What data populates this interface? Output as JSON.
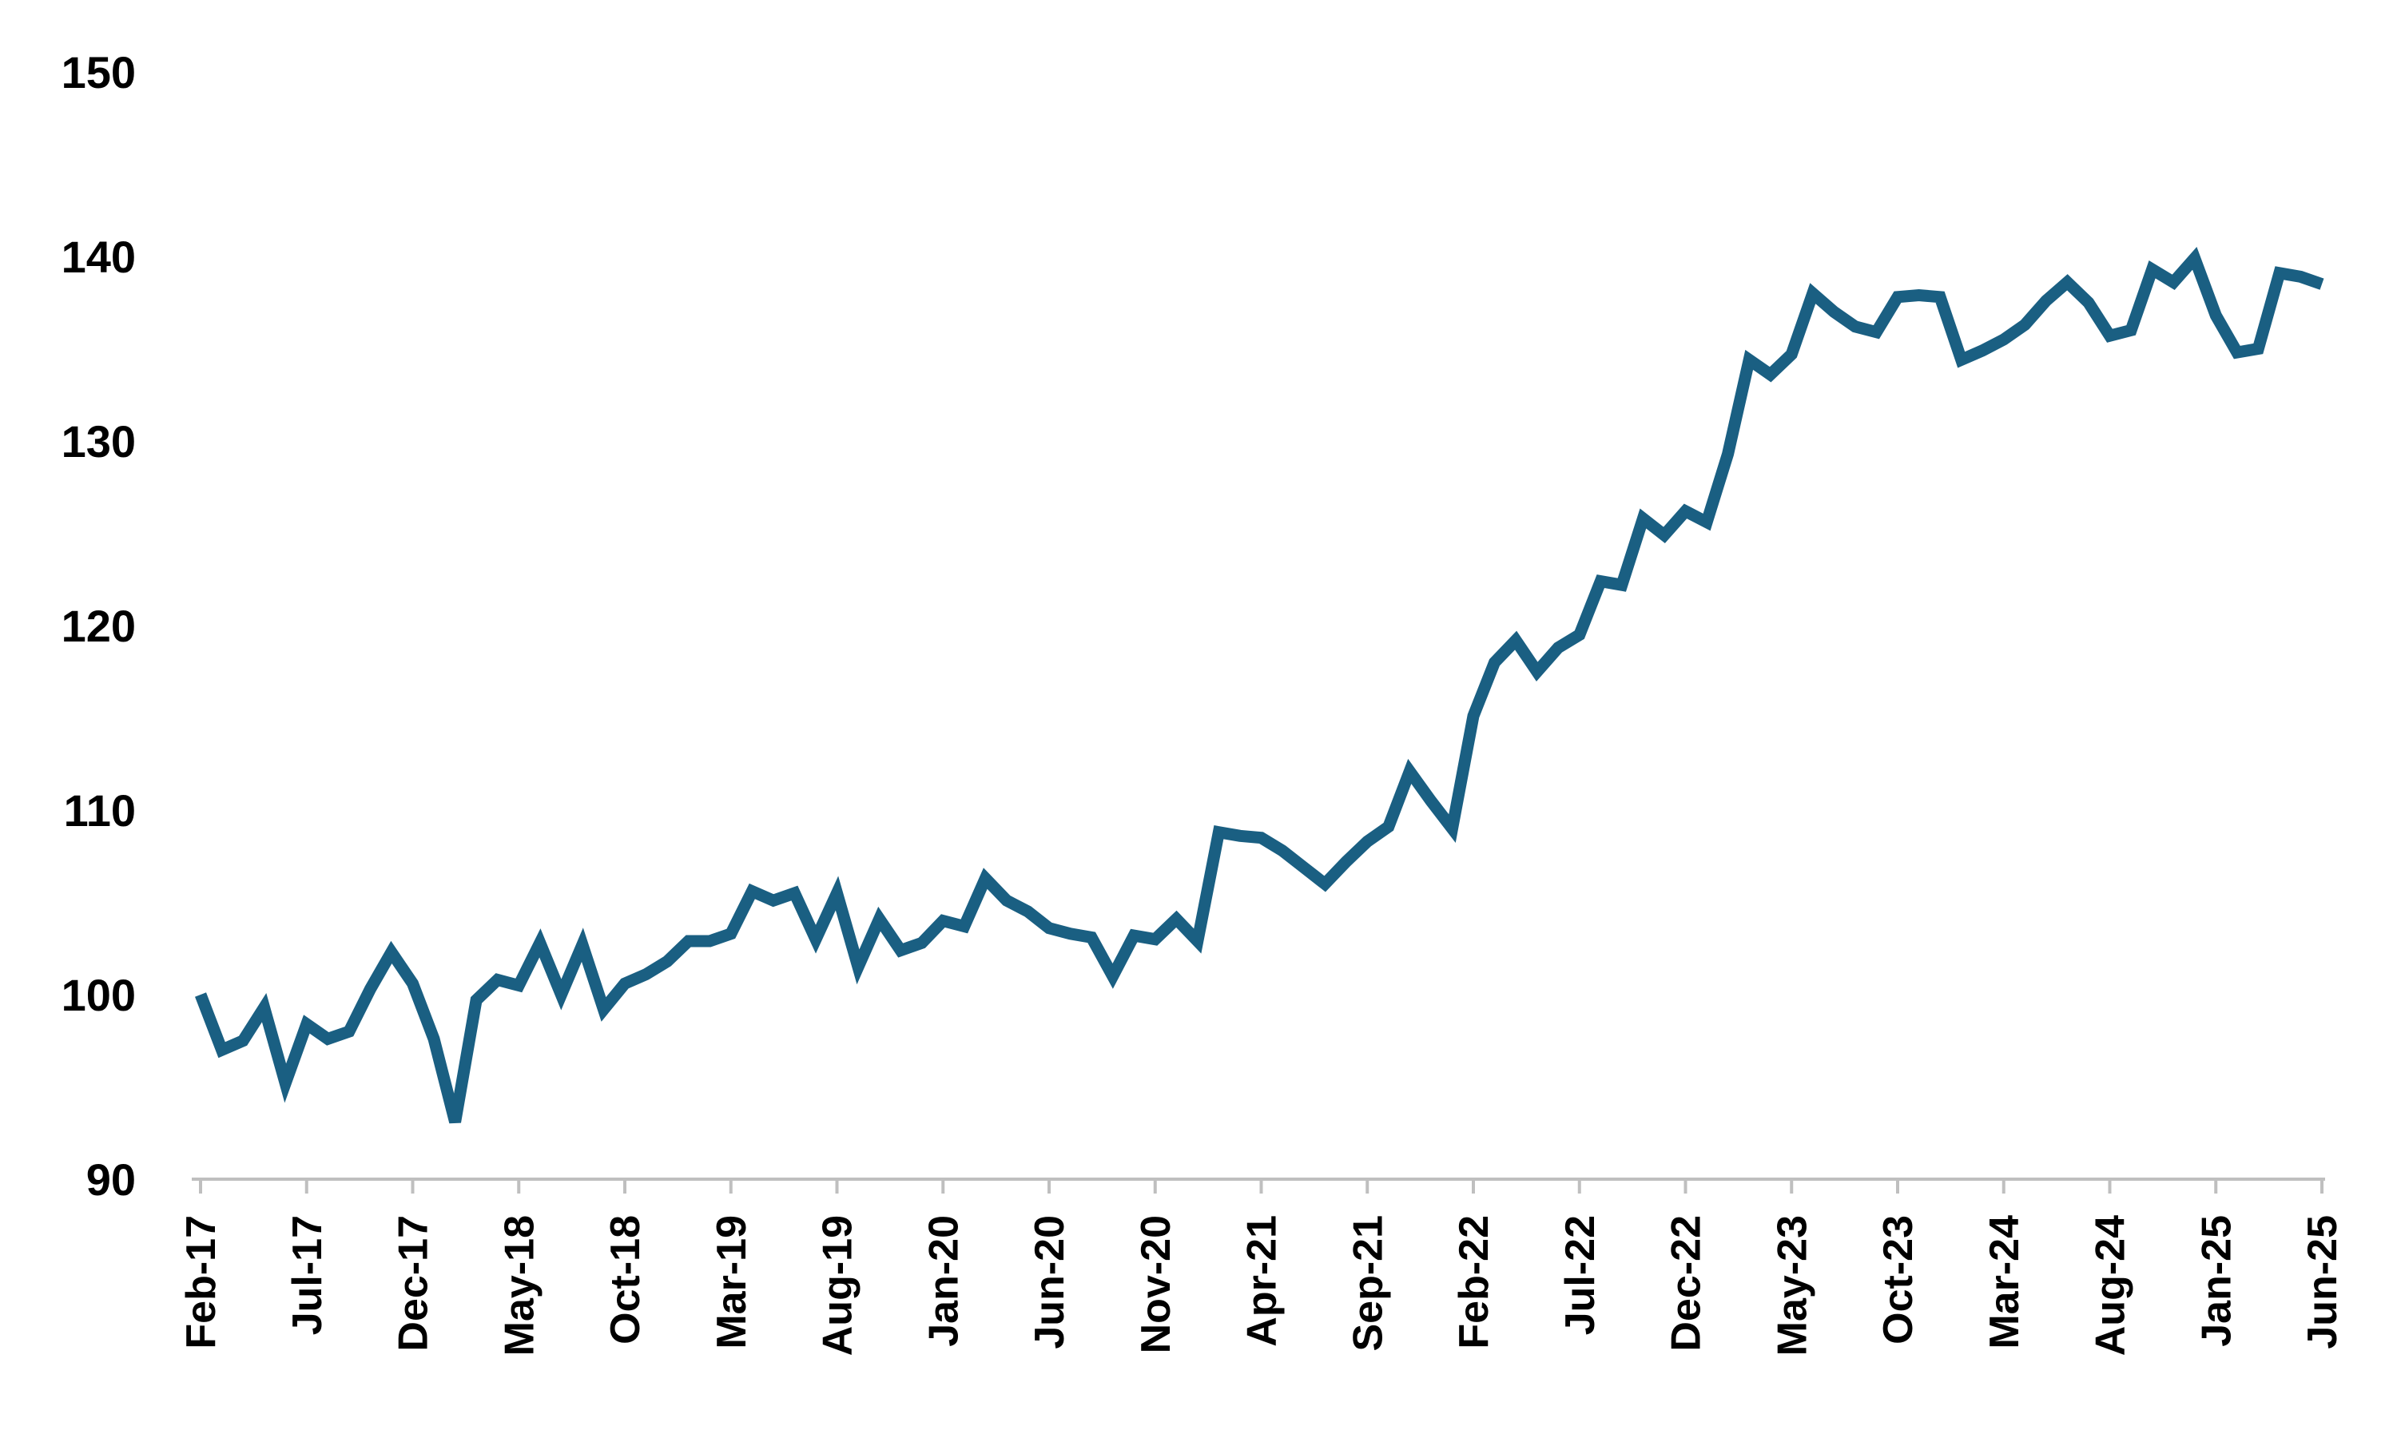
{
  "chart_data": {
    "type": "line",
    "title": "",
    "xlabel": "",
    "ylabel": "",
    "ylim": [
      90,
      150
    ],
    "yticks": [
      90,
      100,
      110,
      120,
      130,
      140,
      150
    ],
    "grid": false,
    "legend": "none",
    "x_tick_labels": [
      "Feb-17",
      "Jul-17",
      "Dec-17",
      "May-18",
      "Oct-18",
      "Mar-19",
      "Aug-19",
      "Jan-20",
      "Jun-20",
      "Nov-20",
      "Apr-21",
      "Sep-21",
      "Feb-22",
      "Jul-22",
      "Dec-22",
      "May-23",
      "Oct-23",
      "Mar-24",
      "Aug-24",
      "Jan-25",
      "Jun-25"
    ],
    "x_tick_positions": [
      0,
      5,
      10,
      15,
      20,
      25,
      30,
      35,
      40,
      45,
      50,
      55,
      60,
      65,
      70,
      75,
      80,
      85,
      90,
      95,
      100
    ],
    "x": [
      "Feb-17",
      "Mar-17",
      "Apr-17",
      "May-17",
      "Jun-17",
      "Jul-17",
      "Aug-17",
      "Sep-17",
      "Oct-17",
      "Nov-17",
      "Dec-17",
      "Jan-18",
      "Feb-18",
      "Mar-18",
      "Apr-18",
      "May-18",
      "Jun-18",
      "Jul-18",
      "Aug-18",
      "Sep-18",
      "Oct-18",
      "Nov-18",
      "Dec-18",
      "Jan-19",
      "Feb-19",
      "Mar-19",
      "Apr-19",
      "May-19",
      "Jun-19",
      "Jul-19",
      "Aug-19",
      "Sep-19",
      "Oct-19",
      "Nov-19",
      "Dec-19",
      "Jan-20",
      "Feb-20",
      "Mar-20",
      "Apr-20",
      "May-20",
      "Jun-20",
      "Jul-20",
      "Aug-20",
      "Sep-20",
      "Oct-20",
      "Nov-20",
      "Dec-20",
      "Jan-21",
      "Feb-21",
      "Mar-21",
      "Apr-21",
      "May-21",
      "Jun-21",
      "Jul-21",
      "Aug-21",
      "Sep-21",
      "Oct-21",
      "Nov-21",
      "Dec-21",
      "Jan-22",
      "Feb-22",
      "Mar-22",
      "Apr-22",
      "May-22",
      "Jun-22",
      "Jul-22",
      "Aug-22",
      "Sep-22",
      "Oct-22",
      "Nov-22",
      "Dec-22",
      "Jan-23",
      "Feb-23",
      "Mar-23",
      "Apr-23",
      "May-23",
      "Jun-23",
      "Jul-23",
      "Aug-23",
      "Sep-23",
      "Oct-23",
      "Nov-23",
      "Dec-23",
      "Jan-24",
      "Feb-24",
      "Mar-24",
      "Apr-24",
      "May-24",
      "Jun-24",
      "Jul-24",
      "Aug-24",
      "Sep-24",
      "Oct-24",
      "Nov-24",
      "Dec-24",
      "Jan-25",
      "Feb-25",
      "Mar-25",
      "Apr-25",
      "May-25",
      "Jun-25"
    ],
    "series": [
      {
        "color": "#1a5f82",
        "values": [
          100.0,
          97.0,
          97.5,
          99.3,
          95.2,
          98.4,
          97.6,
          98.0,
          100.3,
          102.3,
          100.6,
          97.6,
          93.1,
          99.7,
          100.8,
          100.5,
          102.8,
          100.0,
          102.7,
          99.2,
          100.6,
          101.1,
          101.8,
          102.9,
          102.9,
          103.3,
          105.6,
          105.1,
          105.5,
          103.0,
          105.5,
          101.5,
          104.1,
          102.4,
          102.8,
          104.0,
          103.7,
          106.3,
          105.1,
          104.5,
          103.6,
          103.3,
          103.1,
          101.0,
          103.2,
          103.0,
          104.1,
          102.9,
          108.8,
          108.6,
          108.5,
          107.8,
          106.9,
          106.0,
          107.2,
          108.3,
          109.1,
          112.1,
          110.5,
          109.0,
          115.1,
          118.0,
          119.2,
          117.5,
          118.8,
          119.5,
          122.4,
          122.2,
          125.8,
          124.9,
          126.2,
          125.6,
          129.3,
          134.4,
          133.6,
          134.7,
          138.0,
          137.0,
          136.2,
          135.9,
          137.8,
          137.9,
          137.8,
          134.4,
          134.9,
          135.5,
          136.3,
          137.6,
          138.6,
          137.5,
          135.7,
          136.0,
          139.3,
          138.6,
          139.9,
          136.8,
          134.8,
          135.0,
          139.1,
          138.9,
          138.5
        ]
      }
    ]
  }
}
